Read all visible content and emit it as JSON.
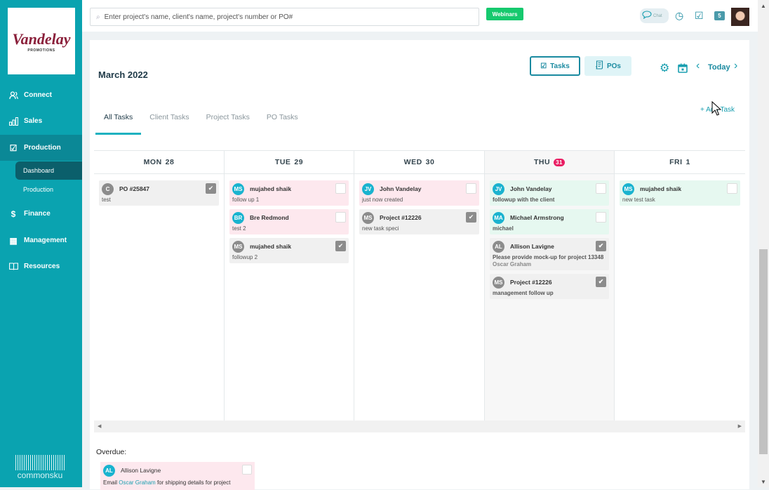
{
  "sidebar": {
    "logo_text": "Vandelay",
    "logo_subtext": "PROMOTIONS",
    "items": [
      {
        "label": "Connect",
        "icon": "people-icon"
      },
      {
        "label": "Sales",
        "icon": "bar-chart-icon"
      },
      {
        "label": "Production",
        "icon": "checklist-icon",
        "active": true
      },
      {
        "label": "Finance",
        "icon": "dollar-icon"
      },
      {
        "label": "Management",
        "icon": "building-icon"
      },
      {
        "label": "Resources",
        "icon": "book-icon"
      }
    ],
    "subitems": [
      {
        "label": "Dashboard",
        "active": true
      },
      {
        "label": "Production"
      }
    ],
    "brand": "commonsku"
  },
  "topbar": {
    "search_placeholder": "Enter project's name, client's name, project's number or PO#",
    "webinars": "Webinars",
    "chat": "Chat",
    "notification_count": "5"
  },
  "calendar": {
    "month": "March 2022",
    "toggle": {
      "tasks": "Tasks",
      "pos": "POs"
    },
    "today": "Today",
    "add_task": "+ Add Task",
    "tabs": [
      "All Tasks",
      "Client Tasks",
      "Project Tasks",
      "PO Tasks"
    ],
    "active_tab": "All Tasks",
    "days": [
      {
        "name": "MON",
        "num": "28",
        "tasks": [
          {
            "initials": "C",
            "name": "PO #25847",
            "desc": "test",
            "color": "grey",
            "avatar": "#8c8c8c",
            "done": true
          }
        ]
      },
      {
        "name": "TUE",
        "num": "29",
        "tasks": [
          {
            "initials": "MS",
            "name": "mujahed shaik",
            "desc": "follow up 1",
            "color": "pink",
            "avatar": "#1ab3cf",
            "done": false
          },
          {
            "initials": "BR",
            "name": "Bre Redmond",
            "desc": "test 2",
            "color": "pink",
            "avatar": "#1ab3cf",
            "done": false
          },
          {
            "initials": "MS",
            "name": "mujahed shaik",
            "desc": "followup 2",
            "color": "grey",
            "avatar": "#8c8c8c",
            "done": true
          }
        ]
      },
      {
        "name": "WED",
        "num": "30",
        "tasks": [
          {
            "initials": "JV",
            "name": "John Vandelay",
            "desc": "just now created",
            "color": "pink",
            "avatar": "#1ab3cf",
            "done": false
          },
          {
            "initials": "MS",
            "name": "Project #12226",
            "desc": "new task speci",
            "color": "grey",
            "avatar": "#8c8c8c",
            "done": true
          }
        ]
      },
      {
        "name": "THU",
        "num": "31",
        "is_today": true,
        "tasks": [
          {
            "initials": "JV",
            "name": "John Vandelay",
            "desc": "followup with the client",
            "color": "green",
            "avatar": "#1ab3cf",
            "done": false
          },
          {
            "initials": "MA",
            "name": "Michael Armstrong",
            "desc": "michael",
            "color": "green",
            "avatar": "#1ab3cf",
            "done": false
          },
          {
            "initials": "AL",
            "name": "Allison Lavigne",
            "desc": "Please provide mock-up for project 13348",
            "desc2": "Oscar Graham",
            "color": "grey",
            "avatar": "#8c8c8c",
            "done": true
          },
          {
            "initials": "MS",
            "name": "Project #12226",
            "desc": "management follow up",
            "color": "grey",
            "avatar": "#8c8c8c",
            "done": true
          }
        ]
      },
      {
        "name": "FRI",
        "num": "1",
        "tasks": [
          {
            "initials": "MS",
            "name": "mujahed shaik",
            "desc": "new test task",
            "color": "green",
            "avatar": "#1ab3cf",
            "done": false
          }
        ]
      }
    ],
    "overdue": {
      "label": "Overdue:",
      "task": {
        "initials": "AL",
        "name": "Allison Lavigne",
        "desc_pre": "Email",
        "link": "Oscar Graham",
        "desc_post": "for shipping details for project"
      }
    }
  }
}
